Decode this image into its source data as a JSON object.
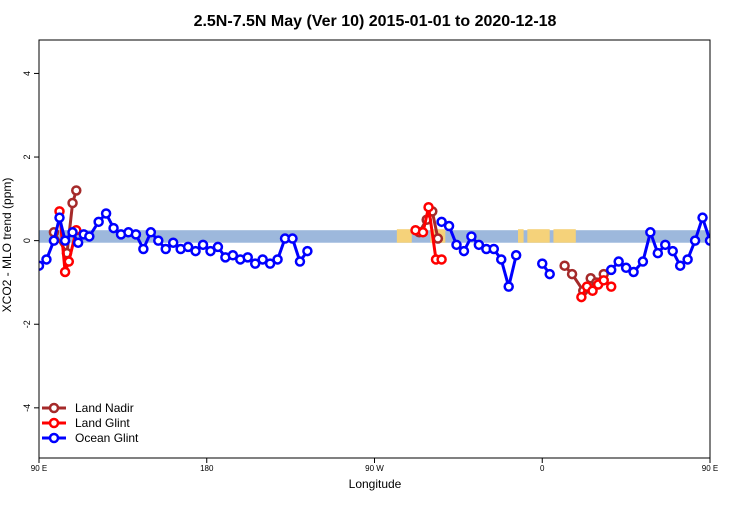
{
  "chart_data": {
    "type": "line",
    "title": "2.5N-7.5N May (Ver 10)   2015-01-01 to 2020-12-18",
    "xlabel": "Longitude",
    "ylabel": "XCO2 - MLO trend (ppm)",
    "xlim": [
      90,
      450
    ],
    "ylim": [
      -5.2,
      4.8
    ],
    "x_ticks": [
      {
        "value": 90,
        "label": "90 E"
      },
      {
        "value": 180,
        "label": "180"
      },
      {
        "value": 270,
        "label": "90 W"
      },
      {
        "value": 360,
        "label": "0"
      },
      {
        "value": 450,
        "label": "90 E"
      },
      {
        "value": 540,
        "label": "180"
      }
    ],
    "y_ticks": [
      {
        "value": -4,
        "label": "-4"
      },
      {
        "value": -2,
        "label": "-2"
      },
      {
        "value": 0,
        "label": "0"
      },
      {
        "value": 2,
        "label": "2"
      },
      {
        "value": 4,
        "label": "4"
      }
    ],
    "colors": {
      "land_band": "#f5d27a",
      "ocean_band": "#9db8dc",
      "land_nadir": "#a52a2a",
      "land_glint": "#ff0000",
      "ocean_glint": "#0000ff"
    },
    "legend_position": "bottom-left",
    "band": {
      "y_min": -0.05,
      "y_max": 0.25,
      "land_segments": [
        [
          282,
          290
        ],
        [
          300,
          308
        ],
        [
          347,
          350
        ],
        [
          352,
          364
        ],
        [
          366,
          378
        ],
        [
          456,
          458
        ],
        [
          503,
          506
        ]
      ]
    },
    "series": [
      {
        "name": "Land Nadir",
        "segments": [
          [
            [
              98,
              0.2
            ],
            [
              105,
              -0.3
            ],
            [
              108,
              0.9
            ],
            [
              110,
              1.2
            ]
          ],
          [
            [
              294,
              0.2
            ],
            [
              298,
              0.5
            ],
            [
              301,
              0.7
            ],
            [
              304,
              0.05
            ]
          ],
          [
            [
              372,
              -0.6
            ],
            [
              376,
              -0.8
            ],
            [
              382,
              -1.2
            ],
            [
              386,
              -0.9
            ],
            [
              389,
              -1.0
            ],
            [
              393,
              -0.8
            ]
          ],
          [
            [
              458,
              0.25
            ],
            [
              461,
              -0.3
            ],
            [
              464,
              0.9
            ],
            [
              466,
              1.2
            ]
          ]
        ]
      },
      {
        "name": "Land Glint",
        "segments": [
          [
            [
              101,
              0.7
            ],
            [
              104,
              -0.75
            ],
            [
              106,
              -0.5
            ],
            [
              110,
              0.25
            ]
          ],
          [
            [
              292,
              0.25
            ],
            [
              296,
              0.2
            ],
            [
              299,
              0.8
            ],
            [
              303,
              -0.45
            ],
            [
              306,
              -0.45
            ]
          ],
          [
            [
              381,
              -1.35
            ],
            [
              384,
              -1.1
            ],
            [
              387,
              -1.2
            ],
            [
              390,
              -1.05
            ],
            [
              393,
              -0.95
            ],
            [
              397,
              -1.1
            ]
          ],
          [
            [
              458,
              0.7
            ],
            [
              462,
              -0.75
            ],
            [
              465,
              -0.5
            ],
            [
              469,
              0.25
            ]
          ]
        ]
      },
      {
        "name": "Ocean Glint",
        "segments": [
          [
            [
              90,
              -0.6
            ],
            [
              94,
              -0.45
            ],
            [
              98,
              0.0
            ],
            [
              101,
              0.55
            ],
            [
              104,
              0.0
            ],
            [
              108,
              0.2
            ],
            [
              111,
              -0.05
            ],
            [
              114,
              0.15
            ],
            [
              117,
              0.1
            ],
            [
              122,
              0.45
            ],
            [
              126,
              0.65
            ],
            [
              130,
              0.3
            ],
            [
              134,
              0.15
            ],
            [
              138,
              0.2
            ],
            [
              142,
              0.15
            ],
            [
              146,
              -0.2
            ],
            [
              150,
              0.2
            ],
            [
              154,
              0.0
            ],
            [
              158,
              -0.2
            ],
            [
              162,
              -0.05
            ],
            [
              166,
              -0.2
            ],
            [
              170,
              -0.15
            ],
            [
              174,
              -0.25
            ],
            [
              178,
              -0.1
            ],
            [
              182,
              -0.25
            ],
            [
              186,
              -0.15
            ],
            [
              190,
              -0.4
            ],
            [
              194,
              -0.35
            ],
            [
              198,
              -0.45
            ],
            [
              202,
              -0.4
            ],
            [
              206,
              -0.55
            ],
            [
              210,
              -0.45
            ],
            [
              214,
              -0.55
            ],
            [
              218,
              -0.45
            ],
            [
              222,
              0.05
            ],
            [
              226,
              0.05
            ],
            [
              230,
              -0.5
            ],
            [
              234,
              -0.25
            ]
          ],
          [
            [
              306,
              0.45
            ],
            [
              310,
              0.35
            ],
            [
              314,
              -0.1
            ],
            [
              318,
              -0.25
            ],
            [
              322,
              0.1
            ],
            [
              326,
              -0.1
            ],
            [
              330,
              -0.2
            ],
            [
              334,
              -0.2
            ],
            [
              338,
              -0.45
            ],
            [
              342,
              -1.1
            ],
            [
              346,
              -0.35
            ]
          ],
          [
            [
              360,
              -0.55
            ],
            [
              364,
              -0.8
            ]
          ],
          [
            [
              397,
              -0.7
            ],
            [
              401,
              -0.5
            ],
            [
              405,
              -0.65
            ],
            [
              409,
              -0.75
            ],
            [
              414,
              -0.5
            ],
            [
              418,
              0.2
            ],
            [
              422,
              -0.3
            ],
            [
              426,
              -0.1
            ],
            [
              430,
              -0.25
            ],
            [
              434,
              -0.6
            ],
            [
              438,
              -0.45
            ],
            [
              442,
              0.0
            ],
            [
              446,
              0.55
            ],
            [
              450,
              0.0
            ],
            [
              454,
              0.2
            ],
            [
              457,
              -0.05
            ],
            [
              461,
              0.15
            ],
            [
              464,
              0.1
            ]
          ]
        ]
      }
    ]
  }
}
